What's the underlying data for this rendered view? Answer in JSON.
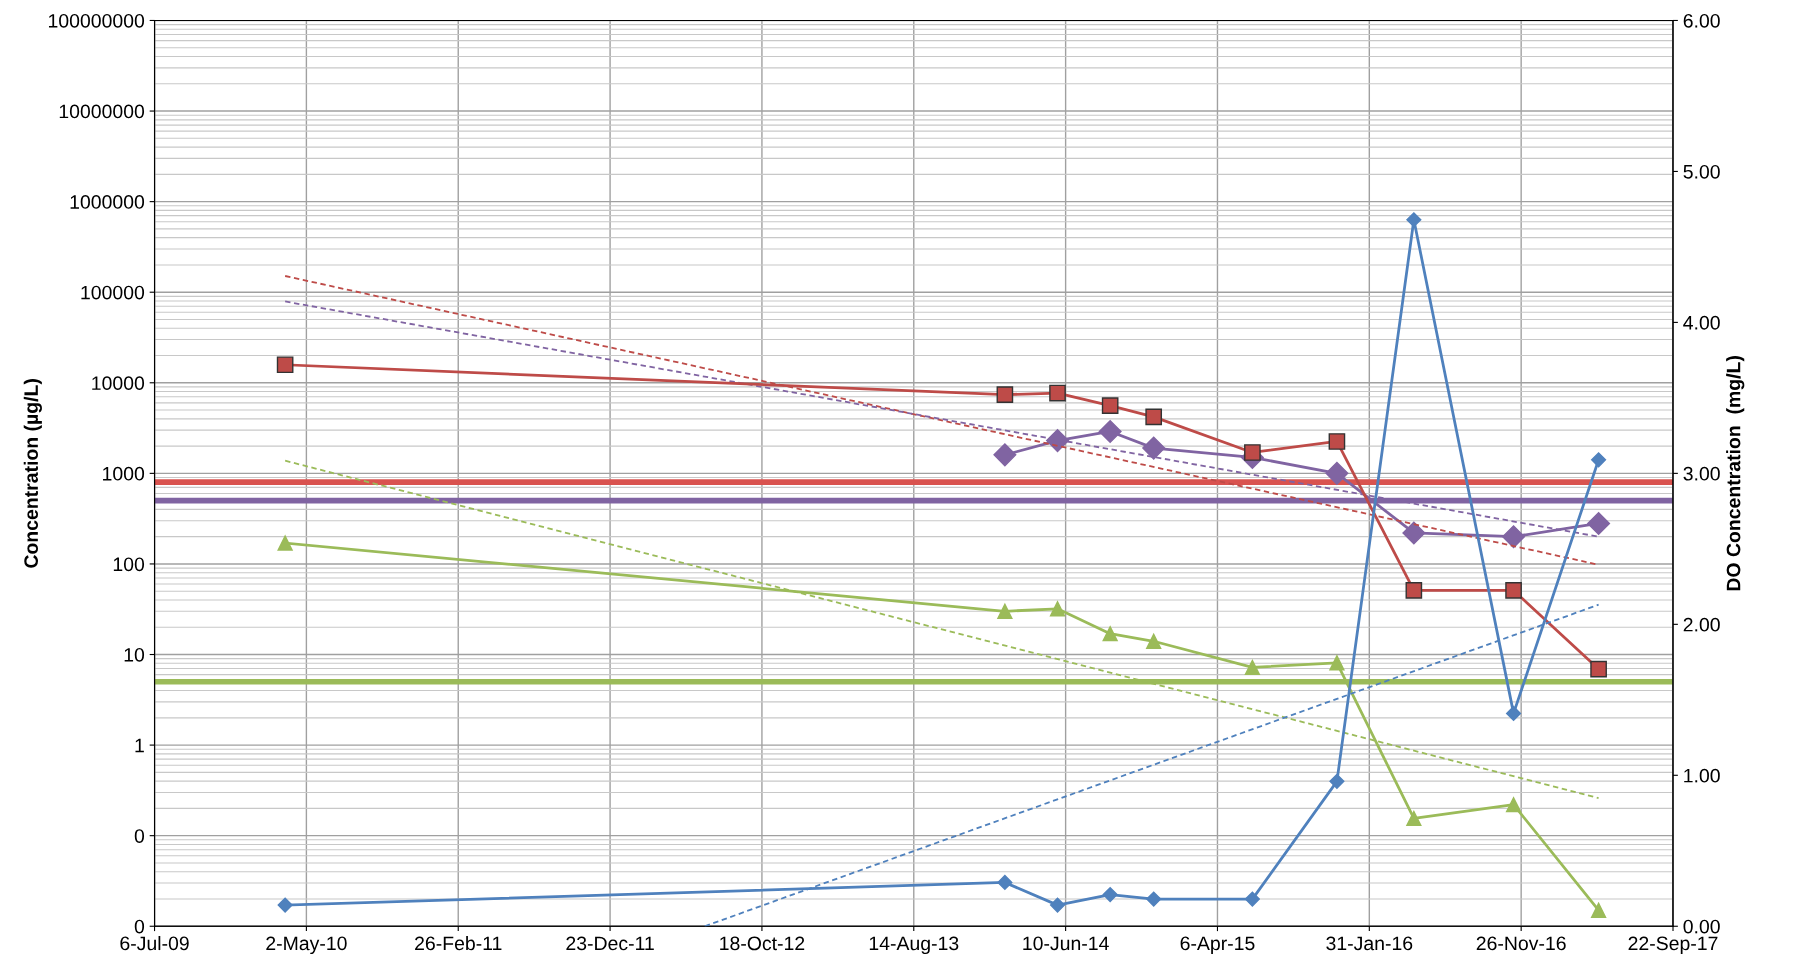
{
  "chart_data": {
    "type": "line",
    "ylabel": "Concentration (µg/L)",
    "y2label": "DO Concentration  (mg/L)",
    "log": "y",
    "grid": true,
    "legend": false,
    "xlim": [
      "2009-07-06",
      "2017-09-22"
    ],
    "xticks": [
      {
        "value": "2009-07-06",
        "label": "6-Jul-09"
      },
      {
        "value": "2010-05-02",
        "label": "2-May-10"
      },
      {
        "value": "2011-02-26",
        "label": "26-Feb-11"
      },
      {
        "value": "2011-12-23",
        "label": "23-Dec-11"
      },
      {
        "value": "2012-10-18",
        "label": "18-Oct-12"
      },
      {
        "value": "2013-08-14",
        "label": "14-Aug-13"
      },
      {
        "value": "2014-06-10",
        "label": "10-Jun-14"
      },
      {
        "value": "2015-04-06",
        "label": "6-Apr-15"
      },
      {
        "value": "2016-01-31",
        "label": "31-Jan-16"
      },
      {
        "value": "2016-11-26",
        "label": "26-Nov-16"
      },
      {
        "value": "2017-09-22",
        "label": "22-Sep-17"
      }
    ],
    "ylim": [
      0.01,
      100000000
    ],
    "yticks": [
      {
        "value": 0.01,
        "label": "0"
      },
      {
        "value": 0.1,
        "label": "0"
      },
      1,
      10,
      100,
      1000,
      10000,
      100000,
      1000000,
      10000000,
      100000000
    ],
    "y2lim": [
      0,
      6
    ],
    "y2ticks": [
      {
        "value": 0,
        "label": "0.00"
      },
      {
        "value": 1,
        "label": "1.00"
      },
      {
        "value": 2,
        "label": "2.00"
      },
      {
        "value": 3,
        "label": "3.00"
      },
      {
        "value": 4,
        "label": "4.00"
      },
      {
        "value": 5,
        "label": "5.00"
      },
      {
        "value": 6,
        "label": "6.00"
      }
    ],
    "x": [
      "2010-03-21",
      "2014-02-10",
      "2014-05-25",
      "2014-09-06",
      "2014-12-01",
      "2015-06-14",
      "2015-11-28",
      "2016-04-28",
      "2016-11-11",
      "2017-04-28"
    ],
    "series": [
      {
        "color": "#be4b48",
        "marker": "square",
        "line_style": "solid",
        "values": [
          15800,
          7400,
          7700,
          5600,
          4200,
          1700,
          2250,
          51,
          51,
          6.9
        ]
      },
      {
        "color": "#8064a2",
        "marker": "diamond",
        "line_style": "solid",
        "values": [
          null,
          1600,
          2300,
          2900,
          1900,
          1500,
          1000,
          220,
          200,
          280
        ]
      },
      {
        "color": "#9bbb59",
        "marker": "triangle",
        "line_style": "solid",
        "values": [
          170,
          30,
          32,
          17,
          14,
          7.2,
          8.1,
          0.155,
          0.22,
          0.015
        ]
      },
      {
        "color": "#4f81bd",
        "marker": "diamond",
        "line_style": "solid",
        "axis": "y2",
        "values": [
          0.14,
          0.29,
          0.14,
          0.21,
          0.18,
          0.18,
          0.96,
          4.68,
          1.41,
          3.09
        ]
      },
      {
        "type": "line",
        "color": "#be4b48",
        "marker": "none",
        "line_style": "dashed",
        "x": [
          "2010-03-21",
          "2017-04-28"
        ],
        "values": [
          151000,
          98
        ]
      },
      {
        "type": "line",
        "color": "#8064a2",
        "marker": "none",
        "line_style": "dashed",
        "x": [
          "2010-03-21",
          "2017-04-28"
        ],
        "values": [
          79000,
          200
        ]
      },
      {
        "type": "line",
        "color": "#9bbb59",
        "marker": "none",
        "line_style": "dashed",
        "x": [
          "2010-03-21",
          "2017-04-28"
        ],
        "values": [
          1380,
          0.26
        ]
      },
      {
        "type": "line",
        "color": "#4f81bd",
        "marker": "none",
        "line_style": "dashed",
        "axis": "y2",
        "x": [
          "2012-06-27",
          "2017-04-28"
        ],
        "values": [
          0,
          2.13
        ]
      }
    ],
    "ref_lines": [
      {
        "axis": "y",
        "value": 800,
        "color": "#d9534f",
        "line_style": "solid"
      },
      {
        "axis": "y",
        "value": 500,
        "color": "#8064a2",
        "line_style": "solid"
      },
      {
        "axis": "y",
        "value": 5,
        "color": "#9bbb59",
        "line_style": "solid"
      }
    ]
  }
}
